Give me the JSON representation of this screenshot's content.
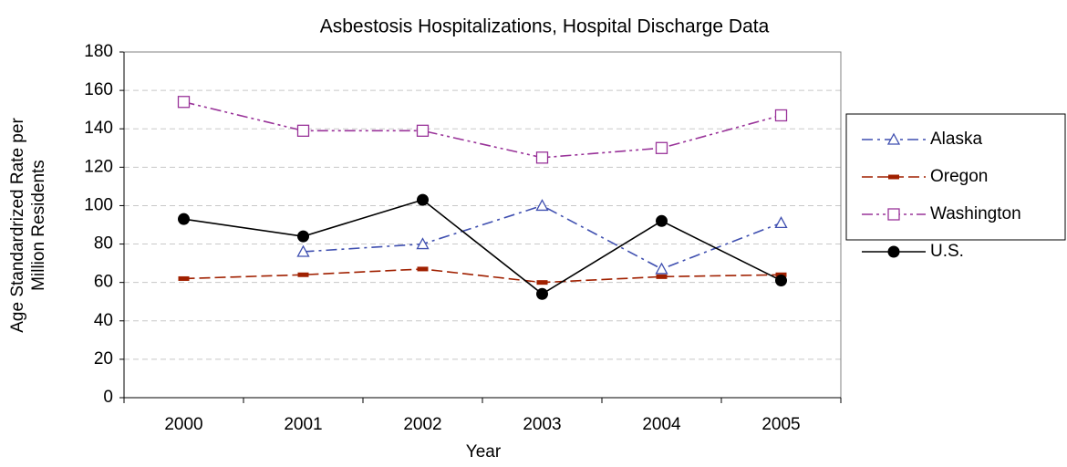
{
  "chart_data": {
    "type": "line",
    "title": "Asbestosis Hospitalizations, Hospital Discharge Data",
    "xlabel": "Year",
    "ylabel": [
      "Age Standardrized Rate per",
      "Million Residents"
    ],
    "categories": [
      "2000",
      "2001",
      "2002",
      "2003",
      "2004",
      "2005"
    ],
    "ylim": [
      0,
      180
    ],
    "yticks": [
      0,
      20,
      40,
      60,
      80,
      100,
      120,
      140,
      160,
      180
    ],
    "grid": true,
    "legend": "right",
    "series": [
      {
        "name": "Alaska",
        "color": "#3f4fb0",
        "dash": "dashdot",
        "marker": "triangle",
        "values": [
          null,
          76,
          80,
          100,
          67,
          91
        ]
      },
      {
        "name": "Oregon",
        "color": "#a02000",
        "dash": "dash",
        "marker": "rect",
        "values": [
          62,
          64,
          67,
          60,
          63,
          64
        ]
      },
      {
        "name": "Washington",
        "color": "#993399",
        "dash": "dashdotdot",
        "marker": "square",
        "values": [
          154,
          139,
          139,
          125,
          130,
          147
        ]
      },
      {
        "name": "U.S.",
        "color": "#000000",
        "dash": "solid",
        "marker": "circle",
        "values": [
          93,
          84,
          103,
          54,
          92,
          61
        ]
      }
    ]
  }
}
